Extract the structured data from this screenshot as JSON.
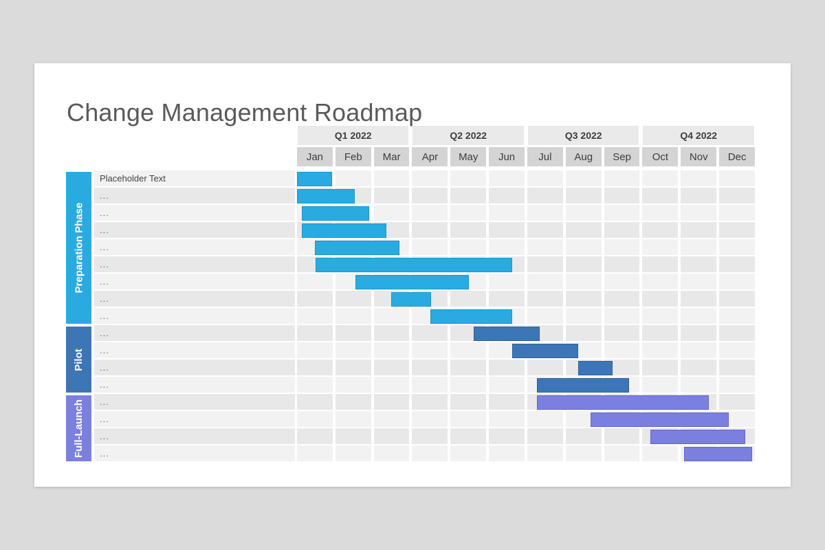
{
  "colors": {
    "page_background": "#dbdbdb",
    "slide_background": "#ffffff",
    "title_text": "#5a5a5a",
    "quarter_header_bg": "#eaeaea",
    "month_header_bg": "#d4d4d4",
    "row_light_bg": "#f2f2f2",
    "row_dark_bg": "#e8e8e8",
    "header_text": "#3d3d3d",
    "label_text": "#434343"
  },
  "chart_data": {
    "type": "gantt",
    "title": "Change Management Roadmap",
    "quarters": [
      "Q1 2022",
      "Q2 2022",
      "Q3 2022",
      "Q4 2022"
    ],
    "months": [
      "Jan",
      "Feb",
      "Mar",
      "Apr",
      "May",
      "Jun",
      "Jul",
      "Aug",
      "Sep",
      "Oct",
      "Nov",
      "Dec"
    ],
    "axis_note": "task start/end are in month units, 0 = start of Jan 2022, 12 = end of Dec 2022",
    "phases": [
      {
        "name": "Preparation Phase",
        "color": "#29abe2",
        "border": "#1796cf",
        "row_start": 0,
        "row_end": 8
      },
      {
        "name": "Pilot",
        "color": "#3c76b7",
        "border": "#2e5f99",
        "row_start": 9,
        "row_end": 12
      },
      {
        "name": "Full-Launch",
        "color": "#7b80e0",
        "border": "#6165c9",
        "row_start": 13,
        "row_end": 16
      }
    ],
    "tasks": [
      {
        "label": "Placeholder Text",
        "phase": 0,
        "start": 0.04,
        "end": 0.95
      },
      {
        "label": "...",
        "phase": 0,
        "start": 0.04,
        "end": 1.54
      },
      {
        "label": "...",
        "phase": 0,
        "start": 0.16,
        "end": 1.92
      },
      {
        "label": "...",
        "phase": 0,
        "start": 0.16,
        "end": 2.36
      },
      {
        "label": "...",
        "phase": 0,
        "start": 0.5,
        "end": 2.7
      },
      {
        "label": "...",
        "phase": 0,
        "start": 0.52,
        "end": 5.64
      },
      {
        "label": "...",
        "phase": 0,
        "start": 1.56,
        "end": 4.51
      },
      {
        "label": "...",
        "phase": 0,
        "start": 2.49,
        "end": 3.53
      },
      {
        "label": "...",
        "phase": 0,
        "start": 3.51,
        "end": 5.64
      },
      {
        "label": "...",
        "phase": 1,
        "start": 4.64,
        "end": 6.36
      },
      {
        "label": "...",
        "phase": 1,
        "start": 5.64,
        "end": 7.36
      },
      {
        "label": "...",
        "phase": 1,
        "start": 7.36,
        "end": 8.26
      },
      {
        "label": "...",
        "phase": 1,
        "start": 6.29,
        "end": 8.69
      },
      {
        "label": "...",
        "phase": 2,
        "start": 6.29,
        "end": 10.76
      },
      {
        "label": "...",
        "phase": 2,
        "start": 7.68,
        "end": 11.28
      },
      {
        "label": "...",
        "phase": 2,
        "start": 9.24,
        "end": 11.71
      },
      {
        "label": "...",
        "phase": 2,
        "start": 10.12,
        "end": 11.89
      }
    ]
  }
}
